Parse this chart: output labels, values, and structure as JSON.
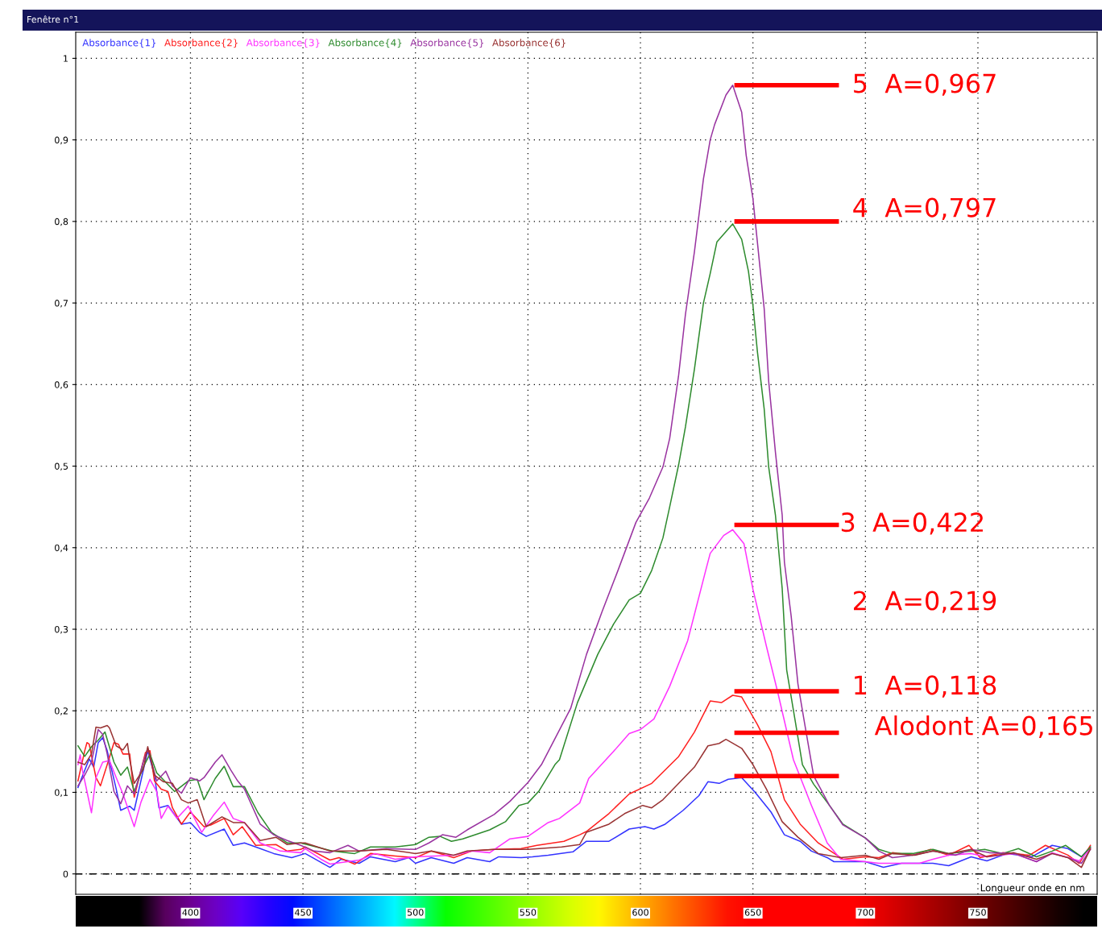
{
  "chart_data": {
    "type": "line",
    "title": "Fenêtre n°1",
    "xlabel": "Longueur onde en nm",
    "xlim": [
      349,
      803
    ],
    "ylim": [
      -0.025,
      1.032
    ],
    "xticks": [
      400,
      450,
      500,
      550,
      600,
      650,
      700,
      750
    ],
    "yticks": [
      {
        "value": 0,
        "label": "0"
      },
      {
        "value": 0.1,
        "label": "0,1"
      },
      {
        "value": 0.2,
        "label": "0,2"
      },
      {
        "value": 0.3,
        "label": "0,3"
      },
      {
        "value": 0.4,
        "label": "0,4"
      },
      {
        "value": 0.5,
        "label": "0,5"
      },
      {
        "value": 0.6,
        "label": "0,6"
      },
      {
        "value": 0.7,
        "label": "0,7"
      },
      {
        "value": 0.8,
        "label": "0,8"
      },
      {
        "value": 0.9,
        "label": "0,9"
      },
      {
        "value": 1,
        "label": "1"
      }
    ],
    "grid": true,
    "legend": "top left",
    "marker": "none",
    "line_style": "solid",
    "series": [
      {
        "name": "Absorbance{1}",
        "color": "#3333ff",
        "x": [
          350,
          355,
          357,
          359,
          361,
          363,
          367,
          369,
          373,
          375,
          381,
          384,
          386,
          390,
          396,
          400,
          404,
          407,
          415,
          419,
          424,
          431,
          437,
          445,
          451,
          462,
          467,
          475,
          480,
          491,
          497,
          500,
          507,
          517,
          523,
          533,
          537,
          547,
          552,
          559,
          570,
          576,
          586,
          595,
          602,
          606,
          611,
          619,
          626,
          630,
          635,
          639,
          645,
          651,
          658,
          664,
          671,
          676,
          683,
          686,
          700,
          708,
          716,
          730,
          737,
          747,
          754,
          763,
          774,
          783,
          790,
          796,
          800
        ],
        "values": [
          0.106,
          0.141,
          0.131,
          0.161,
          0.167,
          0.151,
          0.104,
          0.078,
          0.083,
          0.078,
          0.151,
          0.121,
          0.081,
          0.084,
          0.061,
          0.063,
          0.051,
          0.046,
          0.055,
          0.035,
          0.038,
          0.031,
          0.025,
          0.02,
          0.025,
          0.008,
          0.018,
          0.013,
          0.021,
          0.015,
          0.02,
          0.013,
          0.02,
          0.013,
          0.02,
          0.015,
          0.021,
          0.02,
          0.021,
          0.023,
          0.027,
          0.04,
          0.04,
          0.055,
          0.058,
          0.055,
          0.061,
          0.078,
          0.096,
          0.113,
          0.111,
          0.116,
          0.118,
          0.1,
          0.076,
          0.048,
          0.04,
          0.028,
          0.02,
          0.015,
          0.015,
          0.008,
          0.013,
          0.013,
          0.01,
          0.021,
          0.016,
          0.025,
          0.021,
          0.035,
          0.031,
          0.021,
          0.033
        ]
      },
      {
        "name": "Absorbance{2}",
        "color": "#ff2020",
        "x": [
          350,
          353,
          354,
          355,
          358,
          360,
          363,
          366,
          368,
          370,
          373,
          375,
          380,
          382,
          384,
          387,
          390,
          392,
          396,
          400,
          406,
          409,
          415,
          419,
          423,
          429,
          438,
          443,
          449,
          451,
          462,
          466,
          473,
          480,
          491,
          500,
          507,
          517,
          525,
          535,
          547,
          554,
          566,
          573,
          576,
          586,
          595,
          605,
          617,
          624,
          631,
          636,
          641,
          645,
          652,
          658,
          664,
          671,
          679,
          690,
          700,
          706,
          712,
          721,
          729,
          737,
          746,
          751,
          761,
          773,
          780,
          790,
          795,
          800
        ],
        "values": [
          0.114,
          0.151,
          0.161,
          0.159,
          0.118,
          0.108,
          0.134,
          0.161,
          0.159,
          0.147,
          0.147,
          0.094,
          0.149,
          0.151,
          0.114,
          0.104,
          0.101,
          0.081,
          0.061,
          0.076,
          0.058,
          0.06,
          0.068,
          0.048,
          0.058,
          0.035,
          0.036,
          0.028,
          0.03,
          0.033,
          0.017,
          0.02,
          0.012,
          0.025,
          0.022,
          0.02,
          0.028,
          0.02,
          0.028,
          0.03,
          0.031,
          0.035,
          0.04,
          0.048,
          0.052,
          0.074,
          0.098,
          0.111,
          0.144,
          0.174,
          0.212,
          0.21,
          0.219,
          0.217,
          0.183,
          0.15,
          0.091,
          0.061,
          0.038,
          0.018,
          0.021,
          0.02,
          0.026,
          0.023,
          0.03,
          0.023,
          0.035,
          0.02,
          0.026,
          0.023,
          0.035,
          0.023,
          0.013,
          0.035
        ]
      },
      {
        "name": "Absorbance{3}",
        "color": "#ff33ff",
        "x": [
          350,
          351,
          352,
          356,
          358,
          361,
          364,
          367,
          370,
          375,
          378,
          382,
          385,
          387,
          390,
          394,
          399,
          405,
          410,
          415,
          419,
          424,
          431,
          440,
          449,
          451,
          458,
          462,
          475,
          482,
          491,
          500,
          517,
          525,
          533,
          542,
          550,
          559,
          564,
          573,
          577,
          588,
          595,
          600,
          606,
          613,
          621,
          629,
          631,
          637,
          641,
          646,
          650,
          656,
          661,
          668,
          676,
          683,
          689,
          700,
          706,
          724,
          730,
          737,
          747,
          754,
          766,
          776,
          783,
          795,
          800
        ],
        "values": [
          0.134,
          0.146,
          0.127,
          0.075,
          0.118,
          0.137,
          0.139,
          0.118,
          0.098,
          0.058,
          0.088,
          0.116,
          0.101,
          0.068,
          0.083,
          0.068,
          0.083,
          0.051,
          0.071,
          0.088,
          0.068,
          0.063,
          0.038,
          0.028,
          0.026,
          0.031,
          0.018,
          0.012,
          0.017,
          0.025,
          0.018,
          0.021,
          0.023,
          0.028,
          0.026,
          0.043,
          0.046,
          0.063,
          0.068,
          0.087,
          0.117,
          0.15,
          0.172,
          0.177,
          0.19,
          0.23,
          0.286,
          0.372,
          0.393,
          0.415,
          0.422,
          0.405,
          0.349,
          0.279,
          0.223,
          0.14,
          0.084,
          0.038,
          0.018,
          0.015,
          0.013,
          0.013,
          0.018,
          0.023,
          0.025,
          0.021,
          0.025,
          0.015,
          0.026,
          0.016,
          0.031
        ]
      },
      {
        "name": "Absorbance{4}",
        "color": "#2e8b2e",
        "x": [
          350,
          353,
          356,
          359,
          362,
          366,
          369,
          372,
          375,
          379,
          382,
          385,
          393,
          399,
          403,
          406,
          411,
          415,
          419,
          424,
          430,
          436,
          443,
          449,
          463,
          473,
          480,
          491,
          500,
          506,
          511,
          516,
          521,
          533,
          540,
          546,
          550,
          555,
          562,
          564,
          572,
          581,
          588,
          595,
          600,
          605,
          610,
          613,
          617,
          620,
          624,
          628,
          631,
          634,
          641,
          645,
          648,
          650,
          652,
          655,
          657,
          660,
          663,
          665,
          669,
          672,
          677,
          684,
          690,
          700,
          706,
          712,
          721,
          730,
          737,
          747,
          753,
          761,
          768,
          776,
          783,
          789,
          796,
          800
        ],
        "values": [
          0.157,
          0.144,
          0.156,
          0.164,
          0.174,
          0.137,
          0.121,
          0.131,
          0.101,
          0.131,
          0.147,
          0.124,
          0.101,
          0.114,
          0.116,
          0.091,
          0.117,
          0.132,
          0.107,
          0.107,
          0.075,
          0.051,
          0.038,
          0.038,
          0.028,
          0.025,
          0.033,
          0.033,
          0.036,
          0.045,
          0.046,
          0.04,
          0.043,
          0.054,
          0.064,
          0.084,
          0.087,
          0.102,
          0.134,
          0.14,
          0.21,
          0.269,
          0.306,
          0.336,
          0.344,
          0.372,
          0.412,
          0.45,
          0.502,
          0.548,
          0.619,
          0.7,
          0.736,
          0.775,
          0.797,
          0.778,
          0.739,
          0.697,
          0.64,
          0.57,
          0.499,
          0.44,
          0.35,
          0.25,
          0.184,
          0.134,
          0.11,
          0.084,
          0.061,
          0.044,
          0.03,
          0.025,
          0.025,
          0.03,
          0.025,
          0.028,
          0.03,
          0.025,
          0.031,
          0.021,
          0.028,
          0.035,
          0.021,
          0.033
        ]
      },
      {
        "name": "Absorbance{5}",
        "color": "#9933a0",
        "x": [
          350,
          353,
          356,
          359,
          361,
          363,
          366,
          369,
          372,
          375,
          379,
          381,
          385,
          389,
          392,
          396,
          400,
          404,
          406,
          411,
          414,
          418,
          421,
          424,
          431,
          437,
          443,
          449,
          455,
          462,
          470,
          475,
          487,
          500,
          506,
          512,
          518,
          523,
          535,
          542,
          550,
          556,
          569,
          576,
          583,
          590,
          598,
          604,
          610,
          613,
          617,
          620,
          624,
          628,
          631,
          633,
          638,
          641,
          645,
          647,
          650,
          652,
          655,
          657,
          660,
          663,
          664,
          667,
          670,
          673,
          677,
          684,
          690,
          700,
          706,
          712,
          721,
          730,
          740,
          747,
          755,
          766,
          776,
          783,
          790,
          796,
          800
        ],
        "values": [
          0.108,
          0.121,
          0.137,
          0.177,
          0.171,
          0.147,
          0.101,
          0.086,
          0.108,
          0.098,
          0.137,
          0.154,
          0.114,
          0.126,
          0.108,
          0.099,
          0.118,
          0.114,
          0.118,
          0.137,
          0.146,
          0.127,
          0.114,
          0.104,
          0.061,
          0.048,
          0.041,
          0.035,
          0.028,
          0.026,
          0.035,
          0.028,
          0.031,
          0.03,
          0.038,
          0.048,
          0.045,
          0.054,
          0.073,
          0.089,
          0.112,
          0.134,
          0.203,
          0.269,
          0.322,
          0.372,
          0.431,
          0.461,
          0.499,
          0.534,
          0.612,
          0.686,
          0.763,
          0.852,
          0.9,
          0.919,
          0.955,
          0.967,
          0.934,
          0.881,
          0.828,
          0.774,
          0.693,
          0.604,
          0.517,
          0.44,
          0.382,
          0.316,
          0.233,
          0.184,
          0.12,
          0.084,
          0.06,
          0.044,
          0.028,
          0.02,
          0.023,
          0.028,
          0.023,
          0.03,
          0.026,
          0.025,
          0.015,
          0.025,
          0.02,
          0.013,
          0.03
        ]
      },
      {
        "name": "Absorbance{6}",
        "color": "#993333",
        "x": [
          350,
          353,
          356,
          358,
          360,
          363,
          364,
          367,
          370,
          372,
          373,
          375,
          379,
          381,
          384,
          388,
          392,
          396,
          399,
          403,
          407,
          414,
          419,
          424,
          431,
          438,
          443,
          449,
          451,
          462,
          475,
          487,
          500,
          507,
          517,
          523,
          535,
          550,
          565,
          573,
          576,
          586,
          593,
          601,
          605,
          610,
          617,
          624,
          630,
          635,
          638,
          645,
          650,
          656,
          663,
          670,
          679,
          689,
          700,
          706,
          712,
          722,
          730,
          737,
          747,
          754,
          766,
          776,
          783,
          790,
          796,
          800
        ],
        "values": [
          0.137,
          0.134,
          0.147,
          0.18,
          0.179,
          0.182,
          0.179,
          0.157,
          0.152,
          0.16,
          0.14,
          0.111,
          0.128,
          0.156,
          0.121,
          0.113,
          0.111,
          0.091,
          0.087,
          0.091,
          0.058,
          0.07,
          0.063,
          0.063,
          0.041,
          0.045,
          0.036,
          0.038,
          0.038,
          0.028,
          0.028,
          0.03,
          0.025,
          0.028,
          0.023,
          0.028,
          0.03,
          0.03,
          0.033,
          0.036,
          0.051,
          0.061,
          0.074,
          0.084,
          0.081,
          0.091,
          0.111,
          0.131,
          0.157,
          0.16,
          0.165,
          0.154,
          0.134,
          0.104,
          0.064,
          0.045,
          0.025,
          0.02,
          0.023,
          0.018,
          0.025,
          0.023,
          0.028,
          0.025,
          0.03,
          0.021,
          0.026,
          0.018,
          0.025,
          0.02,
          0.008,
          0.031
        ]
      }
    ],
    "ref_lines": [
      {
        "axis": "y",
        "value": 0,
        "label": null,
        "color": "#000000",
        "line_style": "dashed"
      },
      {
        "axis": "y",
        "value": 0.967,
        "label": null,
        "color": "#ff0000",
        "line_style": "solid"
      },
      {
        "axis": "y",
        "value": 0.8,
        "label": null,
        "color": "#ff0000",
        "line_style": "solid"
      },
      {
        "axis": "y",
        "value": 0.428,
        "label": null,
        "color": "#ff0000",
        "line_style": "solid"
      },
      {
        "axis": "y",
        "value": 0.224,
        "label": null,
        "color": "#ff0000",
        "line_style": "solid"
      },
      {
        "axis": "y",
        "value": 0.173,
        "label": null,
        "color": "#ff0000",
        "line_style": "solid"
      },
      {
        "axis": "y",
        "value": 0.12,
        "label": null,
        "color": "#ff0000",
        "line_style": "solid"
      }
    ],
    "annotations": [
      "5  A=0,967",
      "4  A=0,797",
      "3  A=0,422",
      "2  A=0,219",
      "1  A=0,118",
      "Alodont A=0,165"
    ]
  }
}
